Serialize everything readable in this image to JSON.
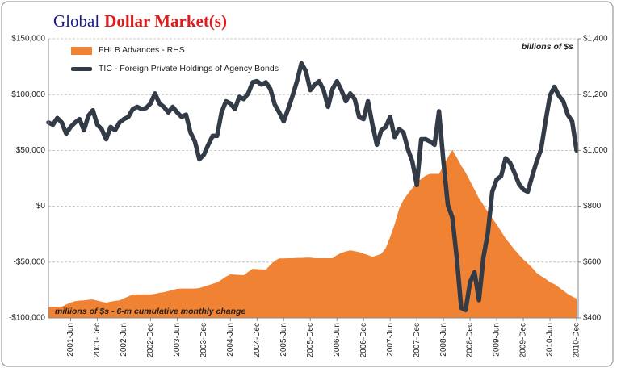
{
  "chart_data": {
    "type": "line",
    "title": [
      "Global",
      "Dollar Market(s)"
    ],
    "annotations": [
      "billions of $s",
      "millions of $s - 6-m cumulative monthly change"
    ],
    "categories": [
      null,
      null,
      null,
      null,
      null,
      "2001-Jun",
      null,
      null,
      null,
      null,
      null,
      "2001-Dec",
      null,
      null,
      null,
      null,
      null,
      "2002-Jun",
      null,
      null,
      null,
      null,
      null,
      "2002-Dec",
      null,
      null,
      null,
      null,
      null,
      "2003-Jun",
      null,
      null,
      null,
      null,
      null,
      "2003-Dec",
      null,
      null,
      null,
      null,
      null,
      "2004-Jun",
      null,
      null,
      null,
      null,
      null,
      "2004-Dec",
      null,
      null,
      null,
      null,
      null,
      "2005-Jun",
      null,
      null,
      null,
      null,
      null,
      "2005-Dec",
      null,
      null,
      null,
      null,
      null,
      "2006-Jun",
      null,
      null,
      null,
      null,
      null,
      "2006-Dec",
      null,
      null,
      null,
      null,
      null,
      "2007-Jun",
      null,
      null,
      null,
      null,
      null,
      "2007-Dec",
      null,
      null,
      null,
      null,
      null,
      "2008-Jun",
      null,
      null,
      null,
      null,
      null,
      "2008-Dec",
      null,
      null,
      null,
      null,
      null,
      "2009-Jun",
      null,
      null,
      null,
      null,
      null,
      "2009-Dec",
      null,
      null,
      null,
      null,
      null,
      "2010-Jun",
      null,
      null,
      null,
      null,
      null,
      "2010-Dec"
    ],
    "series": [
      {
        "name": "FHLB Advances - RHS",
        "type": "area",
        "axis": "y2",
        "color": "#ef8233",
        "values": [
          440,
          440,
          440,
          440,
          448,
          455,
          460,
          462,
          463,
          465,
          466,
          462,
          458,
          455,
          458,
          461,
          463,
          470,
          477,
          484,
          484,
          484,
          484,
          484,
          486,
          490,
          492,
          496,
          500,
          504,
          505,
          505,
          505,
          505,
          507,
          512,
          517,
          522,
          527,
          537,
          548,
          556,
          555,
          554,
          553,
          565,
          576,
          575,
          574,
          573,
          590,
          605,
          613,
          613,
          614,
          614,
          615,
          615,
          616,
          616,
          614,
          614,
          614,
          614,
          614,
          625,
          633,
          638,
          642,
          639,
          636,
          630,
          625,
          619,
          624,
          630,
          650,
          690,
          735,
          790,
          823,
          845,
          865,
          887,
          898,
          910,
          916,
          916,
          916,
          945,
          975,
          1002,
          975,
          945,
          921,
          890,
          860,
          829,
          805,
          780,
          757,
          735,
          710,
          685,
          665,
          645,
          627,
          610,
          595,
          580,
          561,
          550,
          540,
          528,
          521,
          510,
          498,
          486,
          477,
          469
        ]
      },
      {
        "name": "TIC - Foreign Private Holdings of Agency Bonds",
        "type": "line",
        "axis": "y",
        "color": "#333b47",
        "values": [
          75000,
          73000,
          79000,
          75000,
          65000,
          71000,
          75000,
          78000,
          68000,
          81000,
          86000,
          73000,
          69000,
          60000,
          71000,
          68000,
          75000,
          78000,
          80000,
          87000,
          89000,
          87000,
          88000,
          92000,
          101000,
          92000,
          89000,
          84000,
          89000,
          84000,
          80000,
          82000,
          66000,
          58000,
          42000,
          46000,
          55000,
          63000,
          63000,
          84000,
          94000,
          92000,
          87000,
          98000,
          96000,
          101000,
          111000,
          112000,
          109000,
          111000,
          105000,
          91000,
          84000,
          76000,
          87000,
          99000,
          112000,
          128000,
          121000,
          104000,
          109000,
          112000,
          104000,
          89000,
          105000,
          112000,
          104000,
          94000,
          101000,
          96000,
          80000,
          78000,
          94000,
          73000,
          55000,
          68000,
          71000,
          80000,
          62000,
          69000,
          66000,
          51000,
          40000,
          19000,
          60000,
          60000,
          58000,
          55000,
          85000,
          40000,
          1000,
          -10000,
          -46000,
          -91000,
          -93000,
          -68000,
          -59000,
          -84000,
          -46000,
          -24000,
          13000,
          24000,
          27000,
          43000,
          39000,
          30000,
          20000,
          15000,
          13000,
          27000,
          40000,
          51000,
          76000,
          99000,
          107000,
          99000,
          94000,
          82000,
          76000,
          50000
        ]
      }
    ],
    "ylim": [
      -100000,
      150000
    ],
    "yticks": [
      {
        "value": -100000,
        "label": "-$100,000"
      },
      {
        "value": -50000,
        "label": "-$50,000"
      },
      {
        "value": 0,
        "label": "$0"
      },
      {
        "value": 50000,
        "label": "$50,000"
      },
      {
        "value": 100000,
        "label": "$100,000"
      },
      {
        "value": 150000,
        "label": "$150,000"
      }
    ],
    "y2lim": [
      400,
      1400
    ],
    "y2ticks": [
      {
        "value": 400,
        "label": "$400"
      },
      {
        "value": 600,
        "label": "$600"
      },
      {
        "value": 800,
        "label": "$800"
      },
      {
        "value": 1000,
        "label": "$1,000"
      },
      {
        "value": 1200,
        "label": "$1,200"
      },
      {
        "value": 1400,
        "label": "$1,400"
      }
    ],
    "grid": true
  }
}
